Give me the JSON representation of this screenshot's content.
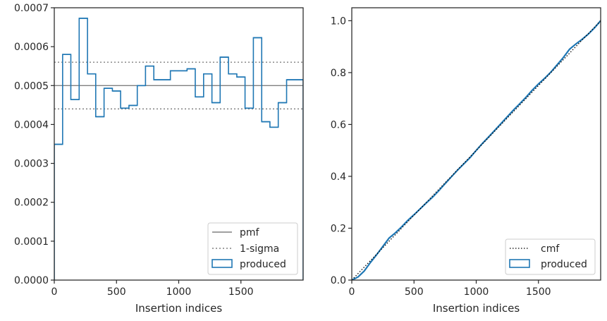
{
  "colors": {
    "produced": "#1f77b4",
    "pmf": "#808080",
    "sigma": "#808080",
    "cmf": "#000000",
    "spine": "#262626"
  },
  "chart_data": [
    {
      "type": "step",
      "xlabel": "Insertion indices",
      "ylabel": "",
      "xlim": [
        0,
        2000
      ],
      "ylim": [
        0,
        0.0007
      ],
      "x_ticks": [
        0,
        500,
        1000,
        1500
      ],
      "x_tick_labels": [
        "0",
        "500",
        "1000",
        "1500"
      ],
      "y_ticks": [
        0,
        0.0001,
        0.0002,
        0.0003,
        0.0004,
        0.0005,
        0.0006,
        0.0007
      ],
      "y_tick_labels": [
        "0.0000",
        "0.0001",
        "0.0002",
        "0.0003",
        "0.0004",
        "0.0005",
        "0.0006",
        "0.0007"
      ],
      "bin_edges": [
        0,
        67,
        133,
        200,
        267,
        333,
        400,
        467,
        533,
        600,
        667,
        733,
        800,
        867,
        933,
        1000,
        1067,
        1133,
        1200,
        1267,
        1333,
        1400,
        1467,
        1533,
        1600,
        1667,
        1733,
        1800,
        1867,
        1933,
        2000
      ],
      "produced": [
        0.000349,
        0.00058,
        0.000464,
        0.000673,
        0.00053,
        0.00042,
        0.000493,
        0.000486,
        0.000442,
        0.000449,
        0.0005,
        0.00055,
        0.000515,
        0.000515,
        0.000538,
        0.000538,
        0.000543,
        0.000471,
        0.00053,
        0.000456,
        0.000573,
        0.00053,
        0.000522,
        0.000442,
        0.000623,
        0.000407,
        0.000393,
        0.000456,
        0.000515,
        0.000515
      ],
      "pmf": 0.0005,
      "sigma": [
        0.00044,
        0.00056
      ],
      "legend": {
        "placement": "lower-right",
        "entries": [
          "pmf",
          "1-sigma",
          "produced"
        ]
      }
    },
    {
      "type": "step",
      "xlabel": "Insertion indices",
      "ylabel": "",
      "xlim": [
        0,
        2000
      ],
      "ylim": [
        0,
        1.05
      ],
      "x_ticks": [
        0,
        500,
        1000,
        1500
      ],
      "x_tick_labels": [
        "0",
        "500",
        "1000",
        "1500"
      ],
      "y_ticks": [
        0,
        0.2,
        0.4,
        0.6,
        0.8,
        1.0
      ],
      "y_tick_labels": [
        "0.0",
        "0.2",
        "0.4",
        "0.6",
        "0.8",
        "1.0"
      ],
      "produced_x": [
        0,
        50,
        100,
        150,
        200,
        250,
        300,
        350,
        400,
        450,
        500,
        550,
        600,
        650,
        700,
        750,
        800,
        850,
        900,
        950,
        1000,
        1050,
        1100,
        1150,
        1200,
        1250,
        1300,
        1350,
        1400,
        1450,
        1500,
        1550,
        1600,
        1650,
        1700,
        1750,
        1800,
        1850,
        1900,
        1950,
        2000
      ],
      "produced_y": [
        0,
        0.012,
        0.035,
        0.068,
        0.098,
        0.13,
        0.162,
        0.182,
        0.205,
        0.23,
        0.252,
        0.275,
        0.298,
        0.32,
        0.345,
        0.372,
        0.398,
        0.424,
        0.448,
        0.472,
        0.5,
        0.527,
        0.552,
        0.578,
        0.604,
        0.63,
        0.656,
        0.68,
        0.705,
        0.732,
        0.756,
        0.778,
        0.802,
        0.83,
        0.858,
        0.89,
        0.91,
        0.928,
        0.948,
        0.972,
        1.0
      ],
      "cmf_x": [
        0,
        2000
      ],
      "cmf_y": [
        0,
        1.0
      ],
      "legend": {
        "placement": "lower-right",
        "entries": [
          "cmf",
          "produced"
        ]
      }
    }
  ]
}
